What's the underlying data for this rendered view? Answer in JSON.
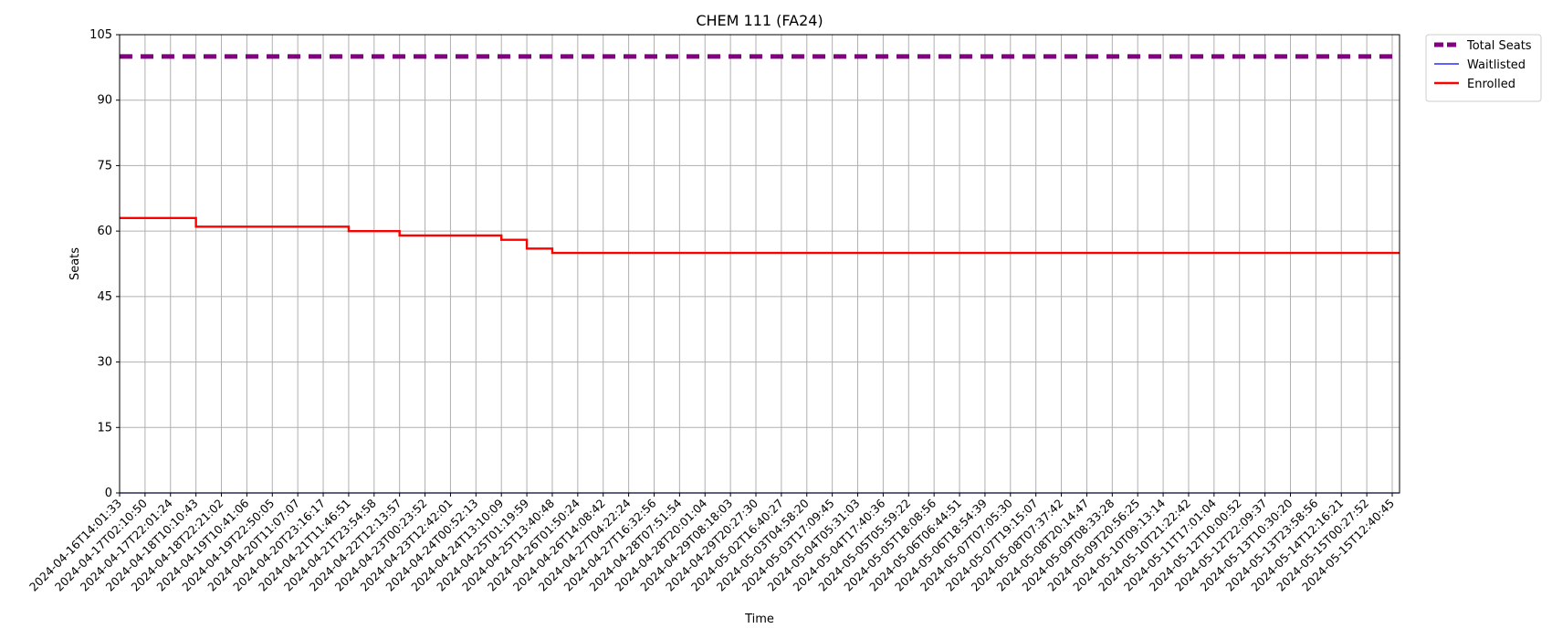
{
  "chart_data": {
    "type": "line",
    "title": "CHEM 111 (FA24)",
    "xlabel": "Time",
    "ylabel": "Seats",
    "ylim": [
      0,
      105
    ],
    "yticks": [
      0,
      15,
      30,
      45,
      60,
      75,
      90,
      105
    ],
    "grid": true,
    "legend_position": "outside-top-right",
    "x": [
      "2024-04-16T14:01:33",
      "2024-04-17T02:10:50",
      "2024-04-17T22:01:24",
      "2024-04-18T10:10:43",
      "2024-04-18T22:21:02",
      "2024-04-19T10:41:06",
      "2024-04-19T22:50:05",
      "2024-04-20T11:07:07",
      "2024-04-20T23:16:17",
      "2024-04-21T11:46:51",
      "2024-04-21T23:54:58",
      "2024-04-22T12:13:57",
      "2024-04-23T00:23:52",
      "2024-04-23T12:42:01",
      "2024-04-24T00:52:13",
      "2024-04-24T13:10:09",
      "2024-04-25T01:19:59",
      "2024-04-25T13:40:48",
      "2024-04-26T01:50:24",
      "2024-04-26T14:08:42",
      "2024-04-27T04:22:24",
      "2024-04-27T16:32:56",
      "2024-04-28T07:51:54",
      "2024-04-28T20:01:04",
      "2024-04-29T08:18:03",
      "2024-04-29T20:27:30",
      "2024-05-02T16:40:27",
      "2024-05-03T04:58:20",
      "2024-05-03T17:09:45",
      "2024-05-04T05:31:03",
      "2024-05-04T17:40:36",
      "2024-05-05T05:59:22",
      "2024-05-05T18:08:56",
      "2024-05-06T06:44:51",
      "2024-05-06T18:54:39",
      "2024-05-07T07:05:30",
      "2024-05-07T19:15:07",
      "2024-05-08T07:37:42",
      "2024-05-08T20:14:47",
      "2024-05-09T08:33:28",
      "2024-05-09T20:56:25",
      "2024-05-10T09:13:14",
      "2024-05-10T21:22:42",
      "2024-05-11T17:01:04",
      "2024-05-12T10:00:52",
      "2024-05-12T22:09:37",
      "2024-05-13T10:30:20",
      "2024-05-13T23:58:56",
      "2024-05-14T12:16:21",
      "2024-05-15T00:27:52",
      "2024-05-15T12:40:45"
    ],
    "series": [
      {
        "name": "Total Seats",
        "color": "#800080",
        "style": "dashed",
        "values": [
          100,
          100,
          100,
          100,
          100,
          100,
          100,
          100,
          100,
          100,
          100,
          100,
          100,
          100,
          100,
          100,
          100,
          100,
          100,
          100,
          100,
          100,
          100,
          100,
          100,
          100,
          100,
          100,
          100,
          100,
          100,
          100,
          100,
          100,
          100,
          100,
          100,
          100,
          100,
          100,
          100,
          100,
          100,
          100,
          100,
          100,
          100,
          100,
          100,
          100,
          100
        ]
      },
      {
        "name": "Waitlisted",
        "color": "#0000ff",
        "style": "solid",
        "values": [
          0,
          0,
          0,
          0,
          0,
          0,
          0,
          0,
          0,
          0,
          0,
          0,
          0,
          0,
          0,
          0,
          0,
          0,
          0,
          0,
          0,
          0,
          0,
          0,
          0,
          0,
          0,
          0,
          0,
          0,
          0,
          0,
          0,
          0,
          0,
          0,
          0,
          0,
          0,
          0,
          0,
          0,
          0,
          0,
          0,
          0,
          0,
          0,
          0,
          0,
          0
        ]
      },
      {
        "name": "Enrolled",
        "color": "#ff0000",
        "style": "solid",
        "values": [
          63,
          63,
          63,
          61,
          61,
          61,
          61,
          61,
          61,
          60,
          60,
          59,
          59,
          59,
          59,
          58,
          56,
          55,
          55,
          55,
          55,
          55,
          55,
          55,
          55,
          55,
          55,
          55,
          55,
          55,
          55,
          55,
          55,
          55,
          55,
          55,
          55,
          55,
          55,
          55,
          55,
          55,
          55,
          55,
          55,
          55,
          55,
          55,
          55,
          55,
          55
        ]
      }
    ]
  }
}
